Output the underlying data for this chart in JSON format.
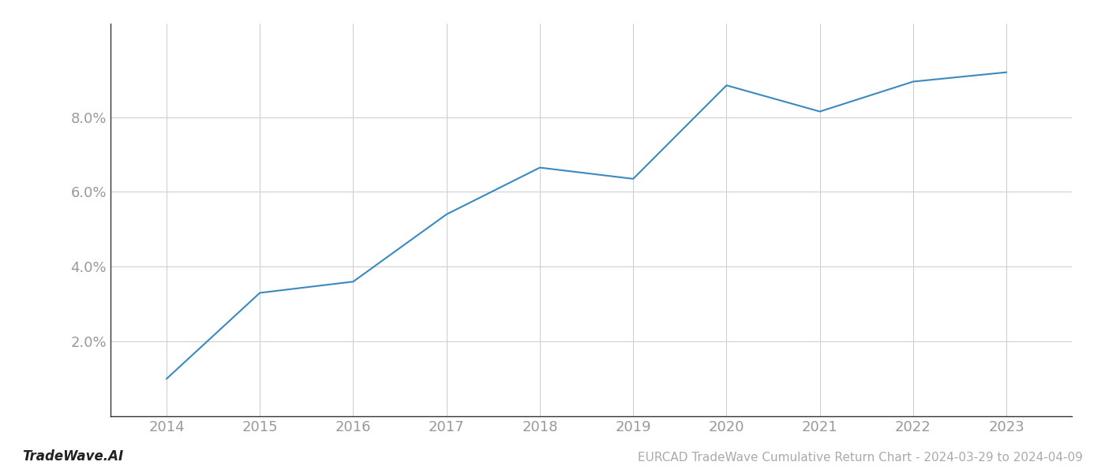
{
  "years": [
    2014,
    2015,
    2016,
    2017,
    2018,
    2019,
    2020,
    2021,
    2022,
    2023
  ],
  "values": [
    1.0,
    3.3,
    3.6,
    5.4,
    6.65,
    6.35,
    8.85,
    8.15,
    8.95,
    9.2
  ],
  "line_color": "#3a8abf",
  "line_width": 1.5,
  "background_color": "#ffffff",
  "grid_color": "#cccccc",
  "tick_label_color": "#999999",
  "footer_left": "TradeWave.AI",
  "footer_right": "EURCAD TradeWave Cumulative Return Chart - 2024-03-29 to 2024-04-09",
  "ylim": [
    0.0,
    10.5
  ],
  "yticks": [
    2.0,
    4.0,
    6.0,
    8.0
  ],
  "figsize": [
    14.0,
    6.0
  ],
  "dpi": 100
}
